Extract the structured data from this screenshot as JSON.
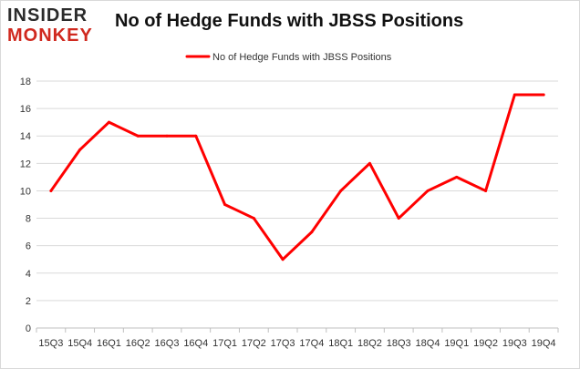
{
  "logo": {
    "line1": "INSIDER",
    "line2": "MONKEY"
  },
  "chart_data": {
    "type": "line",
    "title": "No of Hedge Funds with JBSS Positions",
    "xlabel": "",
    "ylabel": "",
    "categories": [
      "15Q3",
      "15Q4",
      "16Q1",
      "16Q2",
      "16Q3",
      "16Q4",
      "17Q1",
      "17Q2",
      "17Q3",
      "17Q4",
      "18Q1",
      "18Q2",
      "18Q3",
      "18Q4",
      "19Q1",
      "19Q2",
      "19Q3",
      "19Q4"
    ],
    "series": [
      {
        "name": "No of Hedge Funds with JBSS Positions",
        "color": "#ff0000",
        "values": [
          10,
          13,
          15,
          14,
          14,
          14,
          9,
          8,
          5,
          7,
          10,
          12,
          8,
          10,
          11,
          10,
          17,
          17
        ]
      }
    ],
    "ylim": [
      0,
      18
    ],
    "yticks": [
      0,
      2,
      4,
      6,
      8,
      10,
      12,
      14,
      16,
      18
    ],
    "grid": true,
    "legend": "top-center"
  }
}
